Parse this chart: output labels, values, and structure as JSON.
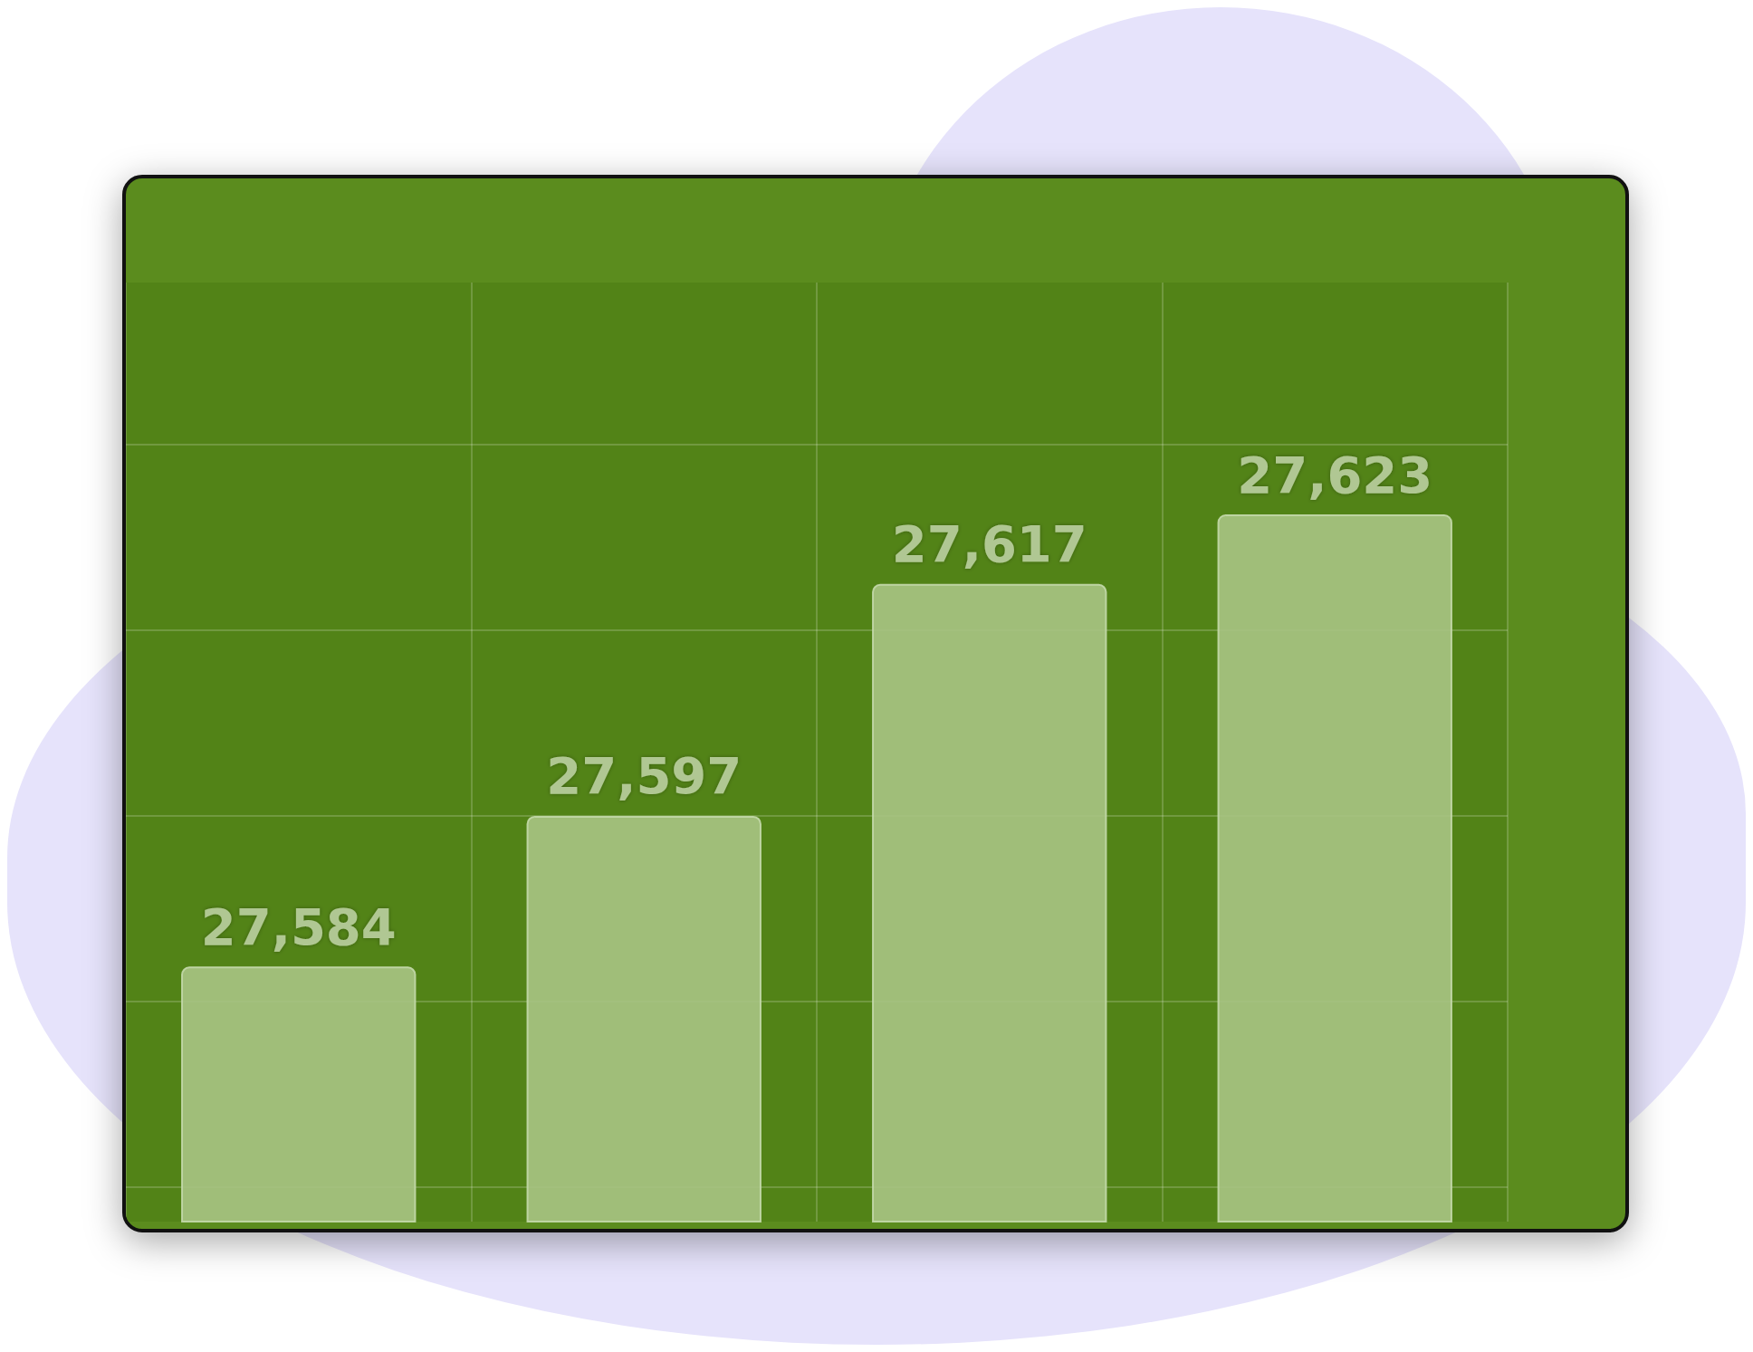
{
  "chart_data": {
    "type": "bar",
    "categories": [
      null,
      null,
      null,
      null
    ],
    "values": [
      27584,
      27597,
      27617,
      27623
    ],
    "color": "#a8c484",
    "value_labels": [
      "27,584",
      "27,597",
      "27,617",
      "27,623"
    ],
    "ylim": [
      27562,
      27643
    ],
    "yticks": [
      {
        "value": 27565,
        "label": null
      },
      {
        "value": 27581,
        "label": null
      },
      {
        "value": 27597,
        "label": null
      },
      {
        "value": 27613,
        "label": null
      },
      {
        "value": 27629,
        "label": null
      }
    ],
    "grid": true
  }
}
